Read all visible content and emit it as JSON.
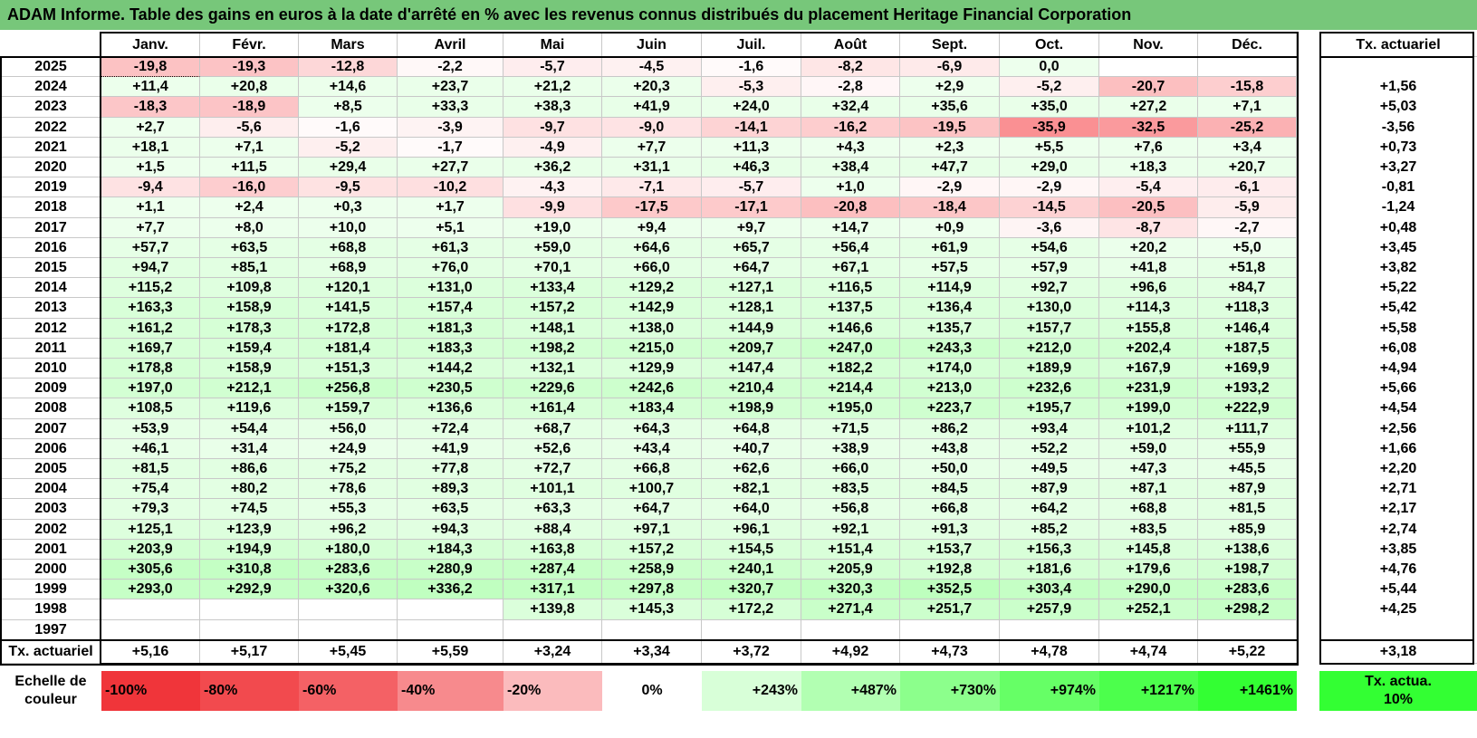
{
  "title": "ADAM Informe. Table des gains en euros à la date d'arrêté en % avec les revenus connus distribués du placement Heritage Financial Corporation",
  "months": [
    "Janv.",
    "Févr.",
    "Mars",
    "Avril",
    "Mai",
    "Juin",
    "Juil.",
    "Août",
    "Sept.",
    "Oct.",
    "Nov.",
    "Déc."
  ],
  "rate_header": "Tx. actuariel",
  "rows": [
    {
      "year": "2025",
      "values": [
        "-19,8",
        "-19,3",
        "-12,8",
        "-2,2",
        "-5,7",
        "-4,5",
        "-1,6",
        "-8,2",
        "-6,9",
        "0,0",
        "",
        ""
      ],
      "rate": ""
    },
    {
      "year": "2024",
      "values": [
        "+11,4",
        "+20,8",
        "+14,6",
        "+23,7",
        "+21,2",
        "+20,3",
        "-5,3",
        "-2,8",
        "+2,9",
        "-5,2",
        "-20,7",
        "-15,8"
      ],
      "rate": "+1,56"
    },
    {
      "year": "2023",
      "values": [
        "-18,3",
        "-18,9",
        "+8,5",
        "+33,3",
        "+38,3",
        "+41,9",
        "+24,0",
        "+32,4",
        "+35,6",
        "+35,0",
        "+27,2",
        "+7,1"
      ],
      "rate": "+5,03"
    },
    {
      "year": "2022",
      "values": [
        "+2,7",
        "-5,6",
        "-1,6",
        "-3,9",
        "-9,7",
        "-9,0",
        "-14,1",
        "-16,2",
        "-19,5",
        "-35,9",
        "-32,5",
        "-25,2"
      ],
      "rate": "-3,56"
    },
    {
      "year": "2021",
      "values": [
        "+18,1",
        "+7,1",
        "-5,2",
        "-1,7",
        "-4,9",
        "+7,7",
        "+11,3",
        "+4,3",
        "+2,3",
        "+5,5",
        "+7,6",
        "+3,4"
      ],
      "rate": "+0,73"
    },
    {
      "year": "2020",
      "values": [
        "+1,5",
        "+11,5",
        "+29,4",
        "+27,7",
        "+36,2",
        "+31,1",
        "+46,3",
        "+38,4",
        "+47,7",
        "+29,0",
        "+18,3",
        "+20,7"
      ],
      "rate": "+3,27"
    },
    {
      "year": "2019",
      "values": [
        "-9,4",
        "-16,0",
        "-9,5",
        "-10,2",
        "-4,3",
        "-7,1",
        "-5,7",
        "+1,0",
        "-2,9",
        "-2,9",
        "-5,4",
        "-6,1"
      ],
      "rate": "-0,81"
    },
    {
      "year": "2018",
      "values": [
        "+1,1",
        "+2,4",
        "+0,3",
        "+1,7",
        "-9,9",
        "-17,5",
        "-17,1",
        "-20,8",
        "-18,4",
        "-14,5",
        "-20,5",
        "-5,9"
      ],
      "rate": "-1,24"
    },
    {
      "year": "2017",
      "values": [
        "+7,7",
        "+8,0",
        "+10,0",
        "+5,1",
        "+19,0",
        "+9,4",
        "+9,7",
        "+14,7",
        "+0,9",
        "-3,6",
        "-8,7",
        "-2,7"
      ],
      "rate": "+0,48"
    },
    {
      "year": "2016",
      "values": [
        "+57,7",
        "+63,5",
        "+68,8",
        "+61,3",
        "+59,0",
        "+64,6",
        "+65,7",
        "+56,4",
        "+61,9",
        "+54,6",
        "+20,2",
        "+5,0"
      ],
      "rate": "+3,45"
    },
    {
      "year": "2015",
      "values": [
        "+94,7",
        "+85,1",
        "+68,9",
        "+76,0",
        "+70,1",
        "+66,0",
        "+64,7",
        "+67,1",
        "+57,5",
        "+57,9",
        "+41,8",
        "+51,8"
      ],
      "rate": "+3,82"
    },
    {
      "year": "2014",
      "values": [
        "+115,2",
        "+109,8",
        "+120,1",
        "+131,0",
        "+133,4",
        "+129,2",
        "+127,1",
        "+116,5",
        "+114,9",
        "+92,7",
        "+96,6",
        "+84,7"
      ],
      "rate": "+5,22"
    },
    {
      "year": "2013",
      "values": [
        "+163,3",
        "+158,9",
        "+141,5",
        "+157,4",
        "+157,2",
        "+142,9",
        "+128,1",
        "+137,5",
        "+136,4",
        "+130,0",
        "+114,3",
        "+118,3"
      ],
      "rate": "+5,42"
    },
    {
      "year": "2012",
      "values": [
        "+161,2",
        "+178,3",
        "+172,8",
        "+181,3",
        "+148,1",
        "+138,0",
        "+144,9",
        "+146,6",
        "+135,7",
        "+157,7",
        "+155,8",
        "+146,4"
      ],
      "rate": "+5,58"
    },
    {
      "year": "2011",
      "values": [
        "+169,7",
        "+159,4",
        "+181,4",
        "+183,3",
        "+198,2",
        "+215,0",
        "+209,7",
        "+247,0",
        "+243,3",
        "+212,0",
        "+202,4",
        "+187,5"
      ],
      "rate": "+6,08"
    },
    {
      "year": "2010",
      "values": [
        "+178,8",
        "+158,9",
        "+151,3",
        "+144,2",
        "+132,1",
        "+129,9",
        "+147,4",
        "+182,2",
        "+174,0",
        "+189,9",
        "+167,9",
        "+169,9"
      ],
      "rate": "+4,94"
    },
    {
      "year": "2009",
      "values": [
        "+197,0",
        "+212,1",
        "+256,8",
        "+230,5",
        "+229,6",
        "+242,6",
        "+210,4",
        "+214,4",
        "+213,0",
        "+232,6",
        "+231,9",
        "+193,2"
      ],
      "rate": "+5,66"
    },
    {
      "year": "2008",
      "values": [
        "+108,5",
        "+119,6",
        "+159,7",
        "+136,6",
        "+161,4",
        "+183,4",
        "+198,9",
        "+195,0",
        "+223,7",
        "+195,7",
        "+199,0",
        "+222,9"
      ],
      "rate": "+4,54"
    },
    {
      "year": "2007",
      "values": [
        "+53,9",
        "+54,4",
        "+56,0",
        "+72,4",
        "+68,7",
        "+64,3",
        "+64,8",
        "+71,5",
        "+86,2",
        "+93,4",
        "+101,2",
        "+111,7"
      ],
      "rate": "+2,56"
    },
    {
      "year": "2006",
      "values": [
        "+46,1",
        "+31,4",
        "+24,9",
        "+41,9",
        "+52,6",
        "+43,4",
        "+40,7",
        "+38,9",
        "+43,8",
        "+52,2",
        "+59,0",
        "+55,9"
      ],
      "rate": "+1,66"
    },
    {
      "year": "2005",
      "values": [
        "+81,5",
        "+86,6",
        "+75,2",
        "+77,8",
        "+72,7",
        "+66,8",
        "+62,6",
        "+66,0",
        "+50,0",
        "+49,5",
        "+47,3",
        "+45,5"
      ],
      "rate": "+2,20"
    },
    {
      "year": "2004",
      "values": [
        "+75,4",
        "+80,2",
        "+78,6",
        "+89,3",
        "+101,1",
        "+100,7",
        "+82,1",
        "+83,5",
        "+84,5",
        "+87,9",
        "+87,1",
        "+87,9"
      ],
      "rate": "+2,71"
    },
    {
      "year": "2003",
      "values": [
        "+79,3",
        "+74,5",
        "+55,3",
        "+63,5",
        "+63,3",
        "+64,7",
        "+64,0",
        "+56,8",
        "+66,8",
        "+64,2",
        "+68,8",
        "+81,5"
      ],
      "rate": "+2,17"
    },
    {
      "year": "2002",
      "values": [
        "+125,1",
        "+123,9",
        "+96,2",
        "+94,3",
        "+88,4",
        "+97,1",
        "+96,1",
        "+92,1",
        "+91,3",
        "+85,2",
        "+83,5",
        "+85,9"
      ],
      "rate": "+2,74"
    },
    {
      "year": "2001",
      "values": [
        "+203,9",
        "+194,9",
        "+180,0",
        "+184,3",
        "+163,8",
        "+157,2",
        "+154,5",
        "+151,4",
        "+153,7",
        "+156,3",
        "+145,8",
        "+138,6"
      ],
      "rate": "+3,85"
    },
    {
      "year": "2000",
      "values": [
        "+305,6",
        "+310,8",
        "+283,6",
        "+280,9",
        "+287,4",
        "+258,9",
        "+240,1",
        "+205,9",
        "+192,8",
        "+181,6",
        "+179,6",
        "+198,7"
      ],
      "rate": "+4,76"
    },
    {
      "year": "1999",
      "values": [
        "+293,0",
        "+292,9",
        "+320,6",
        "+336,2",
        "+317,1",
        "+297,8",
        "+320,7",
        "+320,3",
        "+352,5",
        "+303,4",
        "+290,0",
        "+283,6"
      ],
      "rate": "+5,44"
    },
    {
      "year": "1998",
      "values": [
        "",
        "",
        "",
        "",
        "+139,8",
        "+145,3",
        "+172,2",
        "+271,4",
        "+251,7",
        "+257,9",
        "+252,1",
        "+298,2"
      ],
      "rate": "+4,25"
    },
    {
      "year": "1997",
      "values": [
        "",
        "",
        "",
        "",
        "",
        "",
        "",
        "",
        "",
        "",
        "",
        ""
      ],
      "rate": ""
    }
  ],
  "footer": {
    "label": "Tx. actuariel",
    "values": [
      "+5,16",
      "+5,17",
      "+5,45",
      "+5,59",
      "+3,24",
      "+3,34",
      "+3,72",
      "+4,92",
      "+4,73",
      "+4,78",
      "+4,74",
      "+5,22"
    ],
    "rate": "+3,18"
  },
  "scale": {
    "label": "Echelle de couleur",
    "items": [
      {
        "text": "-100%",
        "color": "#f0353a",
        "align": "left"
      },
      {
        "text": "-80%",
        "color": "#f24a4e",
        "align": "left"
      },
      {
        "text": "-60%",
        "color": "#f46165",
        "align": "left"
      },
      {
        "text": "-40%",
        "color": "#f78a8d",
        "align": "left"
      },
      {
        "text": "-20%",
        "color": "#fbbbbd",
        "align": "left"
      },
      {
        "text": "0%",
        "color": "#ffffff",
        "align": "center"
      },
      {
        "text": "+243%",
        "color": "#d8ffd8",
        "align": "right"
      },
      {
        "text": "+487%",
        "color": "#b2ffb2",
        "align": "right"
      },
      {
        "text": "+730%",
        "color": "#8cff8c",
        "align": "right"
      },
      {
        "text": "+974%",
        "color": "#66ff66",
        "align": "right"
      },
      {
        "text": "+1217%",
        "color": "#4cff4c",
        "align": "right"
      },
      {
        "text": "+1461%",
        "color": "#33ff33",
        "align": "right"
      }
    ],
    "rate_label": "Tx. actua. 10%",
    "rate_color": "#33ff33"
  },
  "colors": {
    "title_bg": "#77c77a",
    "negative": "#f0353a",
    "positive": "#33ff33"
  }
}
